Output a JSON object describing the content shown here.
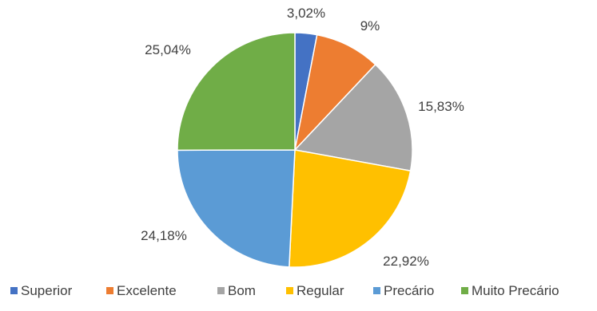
{
  "chart_data": {
    "type": "pie",
    "title": "",
    "legend_position": "bottom",
    "start_angle_deg": 0,
    "direction": "clockwise",
    "slices": [
      {
        "label": "Superior",
        "value": 3.02,
        "value_label": "3,02%",
        "color": "#4472C4"
      },
      {
        "label": "Excelente",
        "value": 9.0,
        "value_label": "9%",
        "color": "#ED7D31"
      },
      {
        "label": "Bom",
        "value": 15.83,
        "value_label": "15,83%",
        "color": "#A5A5A5"
      },
      {
        "label": "Regular",
        "value": 22.92,
        "value_label": "22,92%",
        "color": "#FFC000"
      },
      {
        "label": "Precário",
        "value": 24.18,
        "value_label": "24,18%",
        "color": "#5B9BD5"
      },
      {
        "label": "Muito Precário",
        "value": 25.04,
        "value_label": "25,04%",
        "color": "#70AD47"
      }
    ]
  }
}
